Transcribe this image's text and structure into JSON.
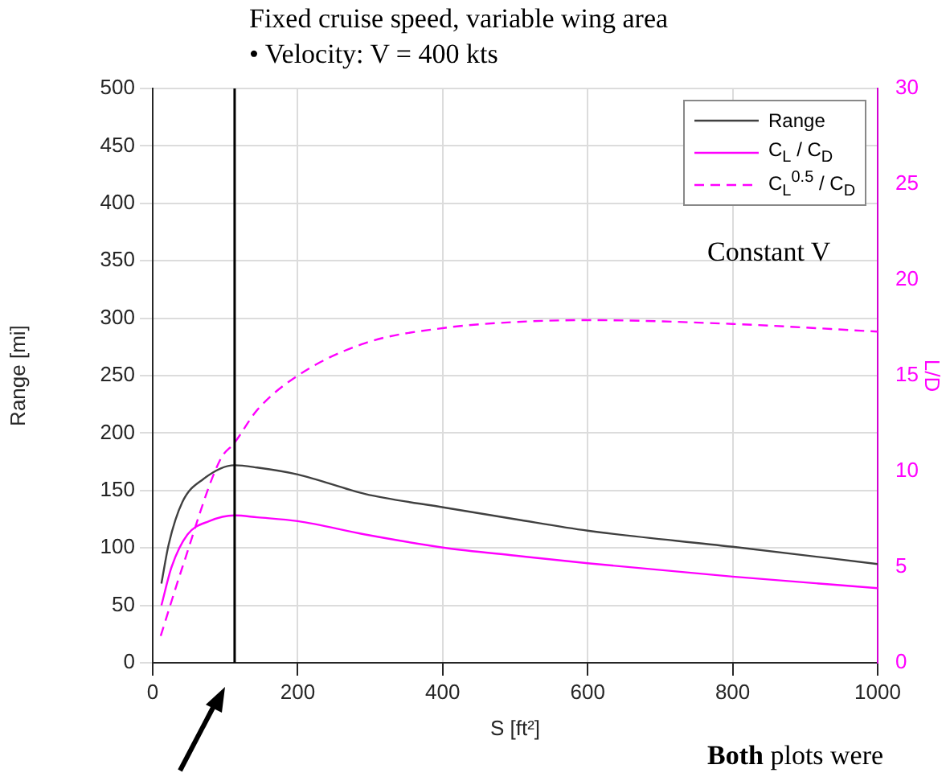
{
  "chart_data": {
    "type": "line",
    "title": "Fixed cruise speed, variable wing area",
    "subtitle": "•    Velocity: V = 400 kts",
    "xlabel": "S [ft²]",
    "ylabel": "Range [mi]",
    "y2label": "L/D",
    "annotations": [
      "Constant V",
      "Both plots were"
    ],
    "xlim": [
      0,
      1000
    ],
    "xticks": [
      0,
      200,
      400,
      600,
      800,
      1000
    ],
    "ylim": [
      0,
      500
    ],
    "yticks": [
      0,
      50,
      100,
      150,
      200,
      250,
      300,
      350,
      400,
      450,
      500
    ],
    "y2lim": [
      0,
      30
    ],
    "y2ticks": [
      0,
      5,
      10,
      15,
      20,
      25,
      30
    ],
    "grid": true,
    "legend": "top right",
    "marker": "none",
    "ref_lines": [
      {
        "axis": "x",
        "value": 113,
        "color": "#000000"
      }
    ],
    "series": [
      {
        "name": "Range",
        "color": "#404040",
        "line_style": "solid",
        "x": [
          12,
          22,
          41,
          70,
          113,
          144,
          200,
          293,
          404,
          500,
          600,
          800,
          1000
        ],
        "values": [
          69,
          103,
          140,
          160,
          172,
          170,
          164,
          147,
          135,
          125,
          115,
          101,
          86
        ]
      },
      {
        "name": "C$_{L}$ / C$_{D}$",
        "color": "#ff00ff",
        "axis": "y2",
        "line_style": "solid",
        "x": [
          12,
          26,
          48,
          78,
          113,
          144,
          200,
          293,
          404,
          500,
          600,
          800,
          1000
        ],
        "values": [
          3.0,
          5.0,
          6.7,
          7.4,
          7.7,
          7.6,
          7.4,
          6.7,
          6.0,
          5.6,
          5.2,
          4.5,
          3.9
        ]
      },
      {
        "name": "C$_{L}$$^{0.5}$ / C$_{D}$",
        "color": "#ff00ff",
        "axis": "y2",
        "line_style": "dashed",
        "x": [
          11,
          41,
          93,
          113,
          144,
          200,
          293,
          404,
          500,
          600,
          800,
          1000
        ],
        "values": [
          1.4,
          5.0,
          10.6,
          11.5,
          13.2,
          15.0,
          16.7,
          17.5,
          17.8,
          17.9,
          17.7,
          17.3
        ]
      }
    ]
  }
}
